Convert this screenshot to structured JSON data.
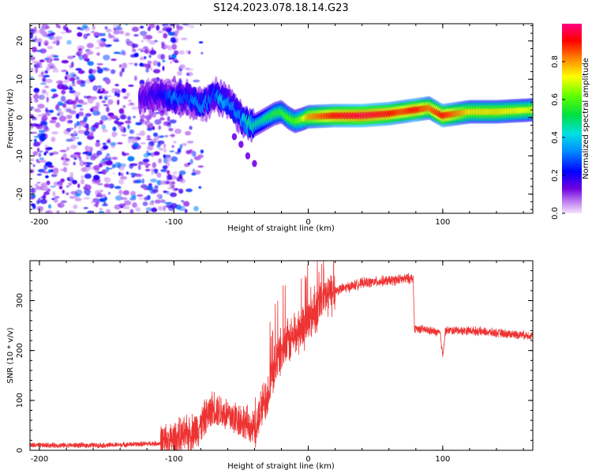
{
  "title": "S124.2023.078.18.14.G23",
  "chart_data": [
    {
      "type": "heatmap",
      "xlabel": "Height of straight line (km)",
      "ylabel": "Frequency (Hz)",
      "xlim": [
        -207,
        167
      ],
      "ylim": [
        -25,
        24.5
      ],
      "xticks": [
        -200,
        -100,
        0,
        100
      ],
      "yticks": [
        -20,
        -10,
        0,
        10,
        20
      ],
      "grid": false,
      "colorbar": {
        "label": "Normalized spectral amplitude",
        "range": [
          0,
          1
        ],
        "ticks": [
          "0.0",
          "0.2",
          "0.4",
          "0.6",
          "0.8"
        ],
        "colormap": [
          "#e8c8f8",
          "#7a00e8",
          "#0000ff",
          "#00c8ff",
          "#00e060",
          "#40ff00",
          "#ffff00",
          "#ff8000",
          "#ff0000",
          "#ff0080"
        ]
      },
      "noise_region": {
        "x_range": [
          -207,
          -85
        ],
        "y_range": [
          -25,
          24.5
        ]
      },
      "ridge": {
        "x": [
          -125,
          -110,
          -100,
          -90,
          -85,
          -80,
          -75,
          -70,
          -65,
          -60,
          -55,
          -50,
          -45,
          -40,
          -35,
          -30,
          -25,
          -20,
          -15,
          -10,
          -5,
          0,
          20,
          40,
          60,
          70,
          80,
          90,
          100,
          120,
          140,
          167
        ],
        "frequency": [
          5,
          6,
          5,
          5,
          4,
          3,
          4,
          6,
          5,
          4,
          2,
          0,
          -2,
          -2,
          -1,
          0,
          1,
          1.5,
          0,
          -1,
          -0.5,
          0.2,
          0.5,
          0.5,
          1,
          1.5,
          2,
          2.5,
          0.5,
          1.5,
          1.5,
          2
        ],
        "amplitude": [
          0.15,
          0.2,
          0.3,
          0.25,
          0.3,
          0.3,
          0.3,
          0.25,
          0.35,
          0.3,
          0.3,
          0.3,
          0.4,
          0.4,
          0.4,
          0.45,
          0.5,
          0.5,
          0.55,
          0.55,
          0.6,
          0.75,
          0.9,
          0.95,
          0.9,
          0.85,
          0.9,
          0.8,
          0.9,
          0.7,
          0.7,
          0.65
        ]
      },
      "side_branch": {
        "x": [
          -55,
          -50,
          -45,
          -40
        ],
        "frequency": [
          -5,
          -7,
          -10,
          -12
        ]
      }
    },
    {
      "type": "line",
      "xlabel": "Height of straight line (km)",
      "ylabel": "SNR (10 * v/v)",
      "xlim": [
        -207,
        167
      ],
      "ylim": [
        0,
        380
      ],
      "xticks": [
        -200,
        -100,
        0,
        100
      ],
      "yticks": [
        0,
        100,
        200,
        300
      ],
      "grid": false,
      "color": "#ee3333",
      "x": [
        -207,
        -150,
        -110,
        -90,
        -80,
        -75,
        -70,
        -60,
        -50,
        -40,
        -30,
        -25,
        -20,
        -10,
        0,
        10,
        20,
        40,
        60,
        78,
        79,
        90,
        98,
        100,
        102,
        120,
        140,
        167
      ],
      "y": [
        10,
        10,
        14,
        30,
        50,
        70,
        85,
        70,
        60,
        40,
        120,
        170,
        200,
        230,
        260,
        300,
        320,
        335,
        340,
        345,
        245,
        240,
        235,
        190,
        240,
        240,
        235,
        230
      ]
    }
  ]
}
